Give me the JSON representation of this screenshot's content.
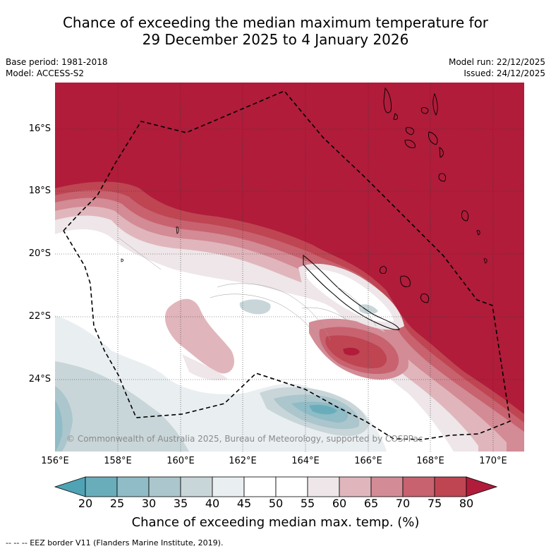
{
  "title": {
    "line1": "Chance of exceeding the median maximum temperature for",
    "line2": "29 December 2025 to 4 January 2026"
  },
  "meta": {
    "base_period": "Base period: 1981-2018",
    "model": "Model: ACCESS-S2",
    "model_run": "Model run: 22/12/2025",
    "issued": "Issued: 24/12/2025"
  },
  "map": {
    "lat_labels": [
      "16°S",
      "18°S",
      "20°S",
      "22°S",
      "24°S"
    ],
    "lon_labels": [
      "156°E",
      "158°E",
      "160°E",
      "162°E",
      "164°E",
      "166°E",
      "168°E",
      "170°E"
    ],
    "copyright": "© Commonwealth of Australia 2025, Bureau of Meteorology, supported by COSPPac",
    "colors": {
      "hot": "#b01c3a",
      "ocean_land_line": "#000000"
    }
  },
  "colorbar": {
    "ticks": [
      "20",
      "25",
      "30",
      "35",
      "40",
      "45",
      "50",
      "55",
      "60",
      "65",
      "70",
      "75",
      "80"
    ],
    "colors": [
      "#4fa3b4",
      "#69adbb",
      "#8fbcc6",
      "#abc6cc",
      "#c9d6d9",
      "#e9eef1",
      "#ffffff",
      "#ffffff",
      "#eee6e8",
      "#e0b6bc",
      "#d38b95",
      "#c8626f",
      "#bf4553",
      "#b01c3a"
    ],
    "label": "Chance of exceeding median max. temp. (%)"
  },
  "footnote": "--  --  -- EEZ border V11 (Flanders Marine Institute, 2019)."
}
